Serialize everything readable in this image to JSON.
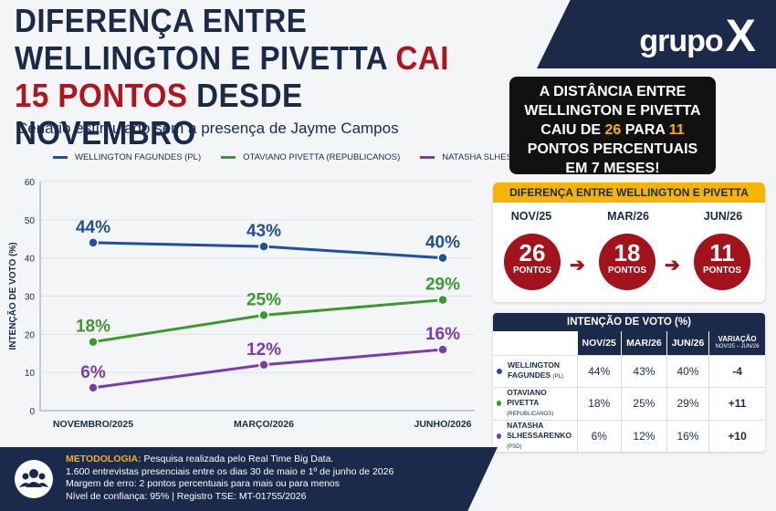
{
  "brand": {
    "logo_text": "grupo",
    "logo_x": "X"
  },
  "header": {
    "title_part1": "DIFERENÇA ENTRE WELLINGTON E PIVETTA ",
    "title_highlight": "CAI 15 PONTOS",
    "title_part2": " DESDE NOVEMBRO",
    "subtitle": "Cenário estimulado sem a presença de Jayme Campos"
  },
  "colors": {
    "navy": "#1b2a4a",
    "red": "#b3121f",
    "yellow": "#f5b400",
    "blue": "#1f4f9e",
    "green": "#3a9a2e",
    "purple": "#7a3ab0"
  },
  "callout": {
    "line1": "A DISTÂNCIA ENTRE",
    "line2": "WELLINGTON E PIVETTA",
    "line3_a": "CAIU DE ",
    "line3_b": "26",
    "line3_c": " PARA ",
    "line3_d": "11",
    "line4": "PONTOS PERCENTUAIS",
    "line5": "EM 7 MESES!"
  },
  "difference": {
    "title": "DIFERENÇA ENTRE WELLINGTON E PIVETTA",
    "unit": "PONTOS",
    "items": [
      {
        "label": "NOV/25",
        "value": "26"
      },
      {
        "label": "MAR/26",
        "value": "18"
      },
      {
        "label": "JUN/26",
        "value": "11"
      }
    ]
  },
  "vote_table": {
    "title": "INTENÇÃO DE VOTO (%)",
    "headers": [
      "NOV/25",
      "MAR/26",
      "JUN/26"
    ],
    "var_header": "VARIAÇÃO",
    "var_sub": "NOV/25 – JUN/26",
    "rows": [
      {
        "name1": "WELLINGTON",
        "name2": "FAGUNDES",
        "party": "(PL)",
        "v": [
          "44%",
          "43%",
          "40%"
        ],
        "var": "-4"
      },
      {
        "name1": "OTAVIANO",
        "name2": "PIVETTA",
        "party": "(REPUBLICANOS)",
        "v": [
          "18%",
          "25%",
          "29%"
        ],
        "var": "+11"
      },
      {
        "name1": "NATASHA",
        "name2": "SLHESSARENKO",
        "party": "(PSD)",
        "v": [
          "6%",
          "12%",
          "16%"
        ],
        "var": "+10"
      }
    ]
  },
  "footer": {
    "label": "METODOLOGIA:",
    "line1": " Pesquisa realizada pelo Real Time Big Data.",
    "line2": "1.600 entrevistas presenciais entre os dias 30 de maio e 1º de junho de 2026",
    "line3": "Margem de erro: 2 pontos percentuais para mais ou para menos",
    "line4": "Nível de confiança: 95%   |   Registro TSE: MT-01755/2026"
  },
  "chart_data": {
    "type": "line",
    "ylabel": "INTENÇÃO DE VOTO (%)",
    "xlabel": "",
    "ylim": [
      0,
      60
    ],
    "yticks": [
      0,
      10,
      20,
      30,
      40,
      50,
      60
    ],
    "grid": true,
    "legend_position": "top",
    "categories": [
      "NOVEMBRO/2025",
      "MARÇO/2026",
      "JUNHO/2026"
    ],
    "series": [
      {
        "name": "WELLINGTON FAGUNDES (PL)",
        "values": [
          44,
          43,
          40
        ],
        "color": "#1f4f9e",
        "labels": [
          "44%",
          "43%",
          "40%"
        ]
      },
      {
        "name": "OTAVIANO PIVETTA (REPUBLICANOS)",
        "values": [
          18,
          25,
          29
        ],
        "color": "#3a9a2e",
        "labels": [
          "18%",
          "25%",
          "29%"
        ]
      },
      {
        "name": "NATASHA SLHESSARENKO (PSD)",
        "values": [
          6,
          12,
          16
        ],
        "color": "#7a3ab0",
        "labels": [
          "6%",
          "12%",
          "16%"
        ]
      }
    ]
  }
}
